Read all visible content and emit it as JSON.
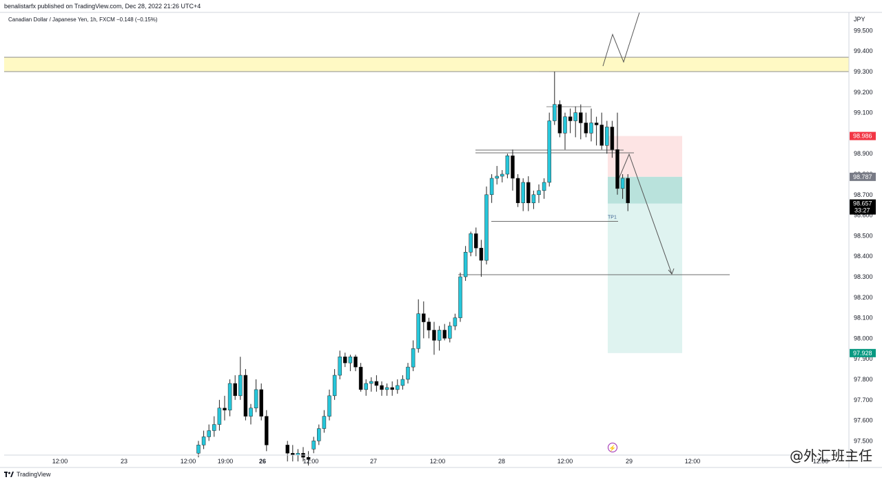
{
  "header": {
    "published": "benalistarfx published on TradingView.com, Dec 28, 2022 21:26 UTC+4",
    "symbol_line": "Canadian Dollar / Japanese Yen, 1h, FXCM  −0.148 (−0.15%)"
  },
  "footer": {
    "brand": "TradingView",
    "watermark": "@外汇班主任",
    "logo_icon": "tradingview-logo-icon",
    "event_icon": "lightning-icon"
  },
  "colors": {
    "up": "#26c6da",
    "down": "#000000",
    "zone": "#fff9c4",
    "stop": "#fde4e4",
    "target": "#dff3f0",
    "stop_label": "#f23645",
    "target_label": "#089981",
    "entry_label": "#787b86"
  },
  "chart_data": {
    "type": "candlestick",
    "currency": "JPY",
    "ylim": [
      97.45,
      99.63
    ],
    "y_ticks": [
      "99.500",
      "99.400",
      "99.300",
      "99.200",
      "99.100",
      "98.900",
      "98.800",
      "98.700",
      "98.600",
      "98.500",
      "98.400",
      "98.300",
      "98.200",
      "98.100",
      "98.000",
      "97.900",
      "97.800",
      "97.700",
      "97.600",
      "97.500"
    ],
    "x_ticks": [
      {
        "label": "12:00",
        "bold": false
      },
      {
        "label": "23",
        "bold": false
      },
      {
        "label": "12:00",
        "bold": false
      },
      {
        "label": "19:00",
        "bold": false
      },
      {
        "label": "26",
        "bold": true
      },
      {
        "label": "12:00",
        "bold": false
      },
      {
        "label": "27",
        "bold": false
      },
      {
        "label": "12:00",
        "bold": false
      },
      {
        "label": "28",
        "bold": false
      },
      {
        "label": "12:00",
        "bold": false
      },
      {
        "label": "29",
        "bold": false
      },
      {
        "label": "12:00",
        "bold": false
      },
      {
        "label": "12:00",
        "bold": false
      }
    ],
    "price_labels": {
      "stop": "98.986",
      "entry": "98.787",
      "current": "98.657",
      "countdown": "33:27",
      "target": "97.928"
    },
    "levels": {
      "zone_top": 99.37,
      "zone_bottom": 99.3,
      "stop": 98.986,
      "entry": 98.787,
      "current": 98.657,
      "target": 97.928,
      "support_line": 98.31,
      "tp1_line": 98.57
    },
    "tp1_label": "TP1",
    "candles": [
      {
        "o": 97.44,
        "h": 97.5,
        "l": 97.42,
        "c": 97.48
      },
      {
        "o": 97.48,
        "h": 97.55,
        "l": 97.46,
        "c": 97.52
      },
      {
        "o": 97.52,
        "h": 97.58,
        "l": 97.5,
        "c": 97.55
      },
      {
        "o": 97.55,
        "h": 97.62,
        "l": 97.52,
        "c": 97.58
      },
      {
        "o": 97.58,
        "h": 97.7,
        "l": 97.55,
        "c": 97.66
      },
      {
        "o": 97.66,
        "h": 97.72,
        "l": 97.6,
        "c": 97.65
      },
      {
        "o": 97.65,
        "h": 97.8,
        "l": 97.62,
        "c": 97.78
      },
      {
        "o": 97.78,
        "h": 97.82,
        "l": 97.7,
        "c": 97.72
      },
      {
        "o": 97.72,
        "h": 97.91,
        "l": 97.7,
        "c": 97.82
      },
      {
        "o": 97.82,
        "h": 97.85,
        "l": 97.6,
        "c": 97.62
      },
      {
        "o": 97.62,
        "h": 97.68,
        "l": 97.58,
        "c": 97.66
      },
      {
        "o": 97.66,
        "h": 97.8,
        "l": 97.64,
        "c": 97.75
      },
      {
        "o": 97.75,
        "h": 97.78,
        "l": 97.6,
        "c": 97.62
      },
      {
        "o": 97.62,
        "h": 97.65,
        "l": 97.45,
        "c": 97.48
      },
      {
        "o": 97.48,
        "h": 97.5,
        "l": 97.4,
        "c": 97.44
      },
      {
        "o": 97.44,
        "h": 97.48,
        "l": 97.4,
        "c": 97.43
      },
      {
        "o": 97.43,
        "h": 97.46,
        "l": 97.4,
        "c": 97.44
      },
      {
        "o": 97.44,
        "h": 97.47,
        "l": 97.4,
        "c": 97.42
      },
      {
        "o": 97.42,
        "h": 97.45,
        "l": 97.38,
        "c": 97.41
      },
      {
        "o": 97.46,
        "h": 97.52,
        "l": 97.44,
        "c": 97.5
      },
      {
        "o": 97.5,
        "h": 97.58,
        "l": 97.48,
        "c": 97.56
      },
      {
        "o": 97.56,
        "h": 97.65,
        "l": 97.54,
        "c": 97.62
      },
      {
        "o": 97.62,
        "h": 97.75,
        "l": 97.6,
        "c": 97.72
      },
      {
        "o": 97.72,
        "h": 97.85,
        "l": 97.7,
        "c": 97.82
      },
      {
        "o": 97.82,
        "h": 97.94,
        "l": 97.8,
        "c": 97.91
      },
      {
        "o": 97.91,
        "h": 97.93,
        "l": 97.86,
        "c": 97.88
      },
      {
        "o": 97.88,
        "h": 97.92,
        "l": 97.84,
        "c": 97.91
      },
      {
        "o": 97.91,
        "h": 97.92,
        "l": 97.84,
        "c": 97.86
      },
      {
        "o": 97.86,
        "h": 97.88,
        "l": 97.74,
        "c": 97.75
      },
      {
        "o": 97.75,
        "h": 97.8,
        "l": 97.72,
        "c": 97.78
      },
      {
        "o": 97.78,
        "h": 97.81,
        "l": 97.74,
        "c": 97.79
      },
      {
        "o": 97.79,
        "h": 97.82,
        "l": 97.74,
        "c": 97.77
      },
      {
        "o": 97.77,
        "h": 97.79,
        "l": 97.72,
        "c": 97.75
      },
      {
        "o": 97.75,
        "h": 97.78,
        "l": 97.72,
        "c": 97.76
      },
      {
        "o": 97.76,
        "h": 97.79,
        "l": 97.72,
        "c": 97.75
      },
      {
        "o": 97.75,
        "h": 97.8,
        "l": 97.73,
        "c": 97.77
      },
      {
        "o": 97.77,
        "h": 97.82,
        "l": 97.75,
        "c": 97.8
      },
      {
        "o": 97.8,
        "h": 97.88,
        "l": 97.78,
        "c": 97.86
      },
      {
        "o": 97.86,
        "h": 97.99,
        "l": 97.84,
        "c": 97.95
      },
      {
        "o": 97.95,
        "h": 98.19,
        "l": 97.93,
        "c": 98.12
      },
      {
        "o": 98.12,
        "h": 98.18,
        "l": 98.0,
        "c": 98.08
      },
      {
        "o": 98.08,
        "h": 98.1,
        "l": 98.0,
        "c": 98.04
      },
      {
        "o": 98.04,
        "h": 98.08,
        "l": 97.92,
        "c": 97.99
      },
      {
        "o": 97.99,
        "h": 98.06,
        "l": 97.94,
        "c": 98.04
      },
      {
        "o": 98.04,
        "h": 98.07,
        "l": 97.99,
        "c": 98.0
      },
      {
        "o": 98.0,
        "h": 98.08,
        "l": 97.98,
        "c": 98.06
      },
      {
        "o": 98.06,
        "h": 98.12,
        "l": 98.04,
        "c": 98.1
      },
      {
        "o": 98.1,
        "h": 98.32,
        "l": 98.08,
        "c": 98.3
      },
      {
        "o": 98.3,
        "h": 98.45,
        "l": 98.28,
        "c": 98.42
      },
      {
        "o": 98.42,
        "h": 98.52,
        "l": 98.4,
        "c": 98.51
      },
      {
        "o": 98.51,
        "h": 98.54,
        "l": 98.4,
        "c": 98.44
      },
      {
        "o": 98.44,
        "h": 98.48,
        "l": 98.3,
        "c": 98.38
      },
      {
        "o": 98.38,
        "h": 98.74,
        "l": 98.36,
        "c": 98.7
      },
      {
        "o": 98.7,
        "h": 98.8,
        "l": 98.66,
        "c": 98.78
      },
      {
        "o": 98.78,
        "h": 98.84,
        "l": 98.75,
        "c": 98.79
      },
      {
        "o": 98.79,
        "h": 98.82,
        "l": 98.76,
        "c": 98.8
      },
      {
        "o": 98.8,
        "h": 98.9,
        "l": 98.78,
        "c": 98.89
      },
      {
        "o": 98.89,
        "h": 98.92,
        "l": 98.72,
        "c": 98.78
      },
      {
        "o": 98.78,
        "h": 98.8,
        "l": 98.64,
        "c": 98.66
      },
      {
        "o": 98.66,
        "h": 98.78,
        "l": 98.62,
        "c": 98.76
      },
      {
        "o": 98.76,
        "h": 98.79,
        "l": 98.62,
        "c": 98.66
      },
      {
        "o": 98.66,
        "h": 98.72,
        "l": 98.63,
        "c": 98.7
      },
      {
        "o": 98.7,
        "h": 98.75,
        "l": 98.66,
        "c": 98.72
      },
      {
        "o": 98.72,
        "h": 98.78,
        "l": 98.68,
        "c": 98.76
      },
      {
        "o": 98.76,
        "h": 99.1,
        "l": 98.74,
        "c": 99.06
      },
      {
        "o": 99.06,
        "h": 99.3,
        "l": 99.04,
        "c": 99.14
      },
      {
        "o": 99.14,
        "h": 99.16,
        "l": 98.98,
        "c": 99.0
      },
      {
        "o": 99.0,
        "h": 99.1,
        "l": 98.92,
        "c": 99.08
      },
      {
        "o": 99.08,
        "h": 99.12,
        "l": 99.0,
        "c": 99.06
      },
      {
        "o": 99.06,
        "h": 99.13,
        "l": 98.98,
        "c": 99.1
      },
      {
        "o": 99.1,
        "h": 99.14,
        "l": 98.97,
        "c": 99.05
      },
      {
        "o": 99.05,
        "h": 99.1,
        "l": 98.98,
        "c": 99.0
      },
      {
        "o": 99.0,
        "h": 99.12,
        "l": 98.96,
        "c": 99.05
      },
      {
        "o": 99.05,
        "h": 99.08,
        "l": 98.94,
        "c": 99.04
      },
      {
        "o": 99.04,
        "h": 99.1,
        "l": 98.92,
        "c": 98.94
      },
      {
        "o": 98.94,
        "h": 99.06,
        "l": 98.9,
        "c": 99.03
      },
      {
        "o": 99.03,
        "h": 99.06,
        "l": 98.88,
        "c": 98.92
      },
      {
        "o": 98.92,
        "h": 99.1,
        "l": 98.7,
        "c": 98.73
      },
      {
        "o": 98.73,
        "h": 98.8,
        "l": 98.68,
        "c": 98.78
      },
      {
        "o": 98.78,
        "h": 98.8,
        "l": 98.62,
        "c": 98.66
      }
    ]
  }
}
